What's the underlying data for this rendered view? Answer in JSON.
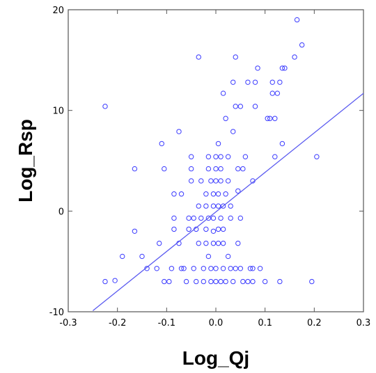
{
  "chart_data": {
    "type": "scatter",
    "xlabel": "Log_Qj",
    "ylabel": "Log_Rsp",
    "xlim": [
      -0.3,
      0.3
    ],
    "ylim": [
      -10,
      20
    ],
    "xticks": [
      -0.3,
      -0.2,
      -0.1,
      0.0,
      0.1,
      0.2,
      0.3
    ],
    "xtick_labels": [
      "-0.3",
      "-0.2",
      "-0.1",
      "0.0",
      "0.1",
      "0.2",
      "0.3"
    ],
    "yticks": [
      -10,
      0,
      10,
      20
    ],
    "ytick_labels": [
      "-10",
      "0",
      "10",
      "20"
    ],
    "grid": false,
    "colors": {
      "points": "#3a3aff",
      "fit_line": "#5a5af0",
      "axes": "#555555"
    },
    "fit_line": {
      "x": [
        -0.25,
        0.3
      ],
      "y": [
        -9.9,
        11.7
      ]
    },
    "points": [
      [
        -0.225,
        10.4
      ],
      [
        -0.225,
        -7.0
      ],
      [
        -0.205,
        -6.9
      ],
      [
        -0.165,
        4.2
      ],
      [
        -0.165,
        -2.0
      ],
      [
        -0.19,
        -4.5
      ],
      [
        -0.15,
        -4.5
      ],
      [
        -0.14,
        -5.7
      ],
      [
        -0.12,
        -5.7
      ],
      [
        -0.115,
        -3.2
      ],
      [
        -0.11,
        6.7
      ],
      [
        -0.105,
        4.2
      ],
      [
        -0.105,
        -7.0
      ],
      [
        -0.095,
        -7.0
      ],
      [
        -0.09,
        -5.7
      ],
      [
        -0.085,
        -0.7
      ],
      [
        -0.085,
        -1.8
      ],
      [
        -0.085,
        1.7
      ],
      [
        -0.075,
        -3.2
      ],
      [
        -0.075,
        7.9
      ],
      [
        -0.07,
        -5.7
      ],
      [
        -0.07,
        1.7
      ],
      [
        -0.065,
        -5.7
      ],
      [
        -0.06,
        -7.0
      ],
      [
        -0.055,
        -0.7
      ],
      [
        -0.055,
        -1.8
      ],
      [
        -0.05,
        4.2
      ],
      [
        -0.05,
        5.4
      ],
      [
        -0.05,
        3.0
      ],
      [
        -0.045,
        -5.7
      ],
      [
        -0.045,
        -0.7
      ],
      [
        -0.04,
        -1.8
      ],
      [
        -0.04,
        -7.0
      ],
      [
        -0.035,
        15.3
      ],
      [
        -0.035,
        0.5
      ],
      [
        -0.035,
        -3.2
      ],
      [
        -0.03,
        -0.7
      ],
      [
        -0.03,
        3.0
      ],
      [
        -0.025,
        -5.7
      ],
      [
        -0.025,
        -7.0
      ],
      [
        -0.02,
        -3.2
      ],
      [
        -0.02,
        -1.8
      ],
      [
        -0.02,
        1.7
      ],
      [
        -0.02,
        0.5
      ],
      [
        -0.015,
        5.4
      ],
      [
        -0.015,
        4.2
      ],
      [
        -0.015,
        -0.7
      ],
      [
        -0.015,
        -4.5
      ],
      [
        -0.01,
        -7.0
      ],
      [
        -0.01,
        3.0
      ],
      [
        -0.01,
        -5.7
      ],
      [
        -0.005,
        -2.0
      ],
      [
        -0.005,
        -3.2
      ],
      [
        -0.005,
        -0.7
      ],
      [
        -0.005,
        0.5
      ],
      [
        -0.005,
        1.7
      ],
      [
        0.0,
        5.4
      ],
      [
        0.0,
        -5.7
      ],
      [
        0.0,
        -7.0
      ],
      [
        0.0,
        3.0
      ],
      [
        0.0,
        4.2
      ],
      [
        0.005,
        -3.2
      ],
      [
        0.005,
        6.7
      ],
      [
        0.005,
        1.7
      ],
      [
        0.005,
        0.5
      ],
      [
        0.005,
        -1.8
      ],
      [
        0.01,
        5.4
      ],
      [
        0.01,
        -7.0
      ],
      [
        0.01,
        4.2
      ],
      [
        0.01,
        -0.7
      ],
      [
        0.01,
        3.0
      ],
      [
        0.015,
        -5.7
      ],
      [
        0.015,
        0.5
      ],
      [
        0.015,
        -3.2
      ],
      [
        0.015,
        11.7
      ],
      [
        0.015,
        -1.8
      ],
      [
        0.02,
        1.7
      ],
      [
        0.02,
        9.2
      ],
      [
        0.02,
        -7.0
      ],
      [
        0.025,
        3.0
      ],
      [
        0.025,
        -4.5
      ],
      [
        0.025,
        5.4
      ],
      [
        0.03,
        0.5
      ],
      [
        0.03,
        -0.7
      ],
      [
        0.03,
        -5.7
      ],
      [
        0.035,
        7.9
      ],
      [
        0.035,
        12.8
      ],
      [
        0.035,
        -7.0
      ],
      [
        0.04,
        -5.7
      ],
      [
        0.04,
        10.4
      ],
      [
        0.04,
        15.3
      ],
      [
        0.045,
        4.2
      ],
      [
        0.045,
        2.0
      ],
      [
        0.045,
        -3.2
      ],
      [
        0.05,
        -5.7
      ],
      [
        0.05,
        10.4
      ],
      [
        0.05,
        -0.7
      ],
      [
        0.055,
        -7.0
      ],
      [
        0.055,
        4.2
      ],
      [
        0.06,
        5.4
      ],
      [
        0.065,
        -7.0
      ],
      [
        0.065,
        12.8
      ],
      [
        0.07,
        -5.7
      ],
      [
        0.075,
        3.0
      ],
      [
        0.075,
        -7.0
      ],
      [
        0.075,
        -5.7
      ],
      [
        0.08,
        10.4
      ],
      [
        0.08,
        12.8
      ],
      [
        0.085,
        14.2
      ],
      [
        0.09,
        -5.7
      ],
      [
        0.1,
        -7.0
      ],
      [
        0.105,
        9.2
      ],
      [
        0.11,
        9.2
      ],
      [
        0.115,
        11.7
      ],
      [
        0.115,
        12.8
      ],
      [
        0.12,
        9.2
      ],
      [
        0.12,
        5.4
      ],
      [
        0.125,
        11.7
      ],
      [
        0.13,
        12.8
      ],
      [
        0.13,
        -7.0
      ],
      [
        0.135,
        6.7
      ],
      [
        0.135,
        14.2
      ],
      [
        0.14,
        14.2
      ],
      [
        0.16,
        15.3
      ],
      [
        0.165,
        19.0
      ],
      [
        0.175,
        16.5
      ],
      [
        0.195,
        -7.0
      ],
      [
        0.205,
        5.4
      ]
    ]
  }
}
